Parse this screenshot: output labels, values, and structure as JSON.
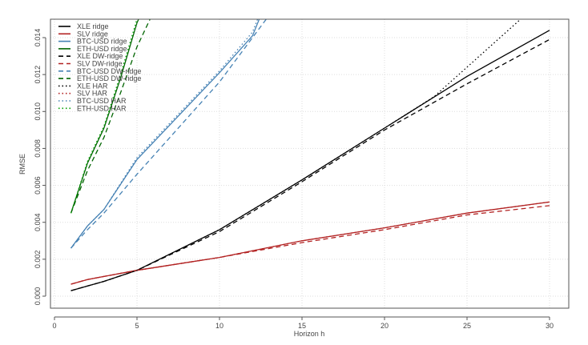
{
  "chart_data": {
    "type": "line",
    "title": "",
    "xlabel": "Horizon h",
    "ylabel": "RMSE",
    "xlim": [
      0,
      30
    ],
    "ylim": [
      0,
      0.015
    ],
    "xticks": [
      "0",
      "5",
      "10",
      "15",
      "20",
      "25",
      "30"
    ],
    "yticks": [
      "0.000",
      "0.002",
      "0.004",
      "0.006",
      "0.008",
      "0.010",
      "0.012",
      "0.014"
    ],
    "grid": true,
    "legend_position": "top-left",
    "series": [
      {
        "name": "XLE ridge",
        "color": "#000000",
        "dash": "solid",
        "x": [
          1,
          3,
          5,
          10,
          15,
          20,
          25,
          30
        ],
        "y": [
          0.0003,
          0.0008,
          0.0014,
          0.0036,
          0.0063,
          0.0091,
          0.0119,
          0.0144
        ]
      },
      {
        "name": "SLV ridge",
        "color": "#b22222",
        "dash": "solid",
        "x": [
          1,
          2,
          5,
          10,
          15,
          20,
          25,
          30
        ],
        "y": [
          0.00065,
          0.0009,
          0.0014,
          0.0021,
          0.003,
          0.0037,
          0.0045,
          0.0051
        ]
      },
      {
        "name": "BTC-USD ridge",
        "color": "#4682b4",
        "dash": "solid",
        "x": [
          1,
          2,
          3,
          5,
          10,
          12,
          12.5
        ],
        "y": [
          0.0026,
          0.0038,
          0.0047,
          0.0074,
          0.0121,
          0.0141,
          0.0152
        ]
      },
      {
        "name": "ETH-USD ridge",
        "color": "#006400",
        "dash": "solid",
        "x": [
          1,
          2,
          3,
          4,
          5,
          5.2
        ],
        "y": [
          0.0045,
          0.0072,
          0.0091,
          0.0118,
          0.0148,
          0.0152
        ]
      },
      {
        "name": "XLE DW-ridge",
        "color": "#000000",
        "dash": "dashed",
        "x": [
          1,
          3,
          5,
          10,
          15,
          20,
          25,
          30
        ],
        "y": [
          0.0003,
          0.0008,
          0.0014,
          0.0035,
          0.0062,
          0.009,
          0.0115,
          0.0139
        ]
      },
      {
        "name": "SLV DW-ridge",
        "color": "#b22222",
        "dash": "dashed",
        "x": [
          1,
          2,
          5,
          10,
          15,
          20,
          25,
          30
        ],
        "y": [
          0.00065,
          0.0009,
          0.0014,
          0.0021,
          0.0029,
          0.0036,
          0.0044,
          0.0049
        ]
      },
      {
        "name": "BTC-USD DW-ridge",
        "color": "#4682b4",
        "dash": "dashed",
        "x": [
          1,
          2,
          3,
          5,
          10,
          13
        ],
        "y": [
          0.0026,
          0.0036,
          0.0045,
          0.0066,
          0.0116,
          0.0152
        ]
      },
      {
        "name": "ETH-USD DW-ridge",
        "color": "#006400",
        "dash": "dashed",
        "x": [
          1,
          2,
          3,
          4,
          5,
          5.9
        ],
        "y": [
          0.0045,
          0.0068,
          0.0086,
          0.011,
          0.0135,
          0.0152
        ]
      },
      {
        "name": "XLE HAR",
        "color": "#000000",
        "dash": "dotted",
        "x": [
          1,
          3,
          5,
          10,
          15,
          20,
          23,
          25,
          28.5
        ],
        "y": [
          0.0003,
          0.0008,
          0.0014,
          0.0036,
          0.0063,
          0.0091,
          0.0108,
          0.0124,
          0.0152
        ]
      },
      {
        "name": "SLV HAR",
        "color": "#b22222",
        "dash": "dotted",
        "x": [
          1,
          2,
          5,
          10,
          15,
          20,
          25,
          30
        ],
        "y": [
          0.00065,
          0.0009,
          0.0014,
          0.0021,
          0.003,
          0.0037,
          0.0045,
          0.0051
        ]
      },
      {
        "name": "BTC-USD HAR",
        "color": "#4682b4",
        "dash": "dotted",
        "x": [
          1,
          2,
          3,
          5,
          10,
          12,
          12.4
        ],
        "y": [
          0.0026,
          0.0038,
          0.0047,
          0.0075,
          0.0122,
          0.0143,
          0.0152
        ]
      },
      {
        "name": "ETH-USD HAR",
        "color": "#00a000",
        "dash": "dotted",
        "x": [
          1,
          2,
          3,
          4,
          5,
          5.2
        ],
        "y": [
          0.0045,
          0.0073,
          0.0092,
          0.012,
          0.015,
          0.0152
        ]
      }
    ]
  }
}
